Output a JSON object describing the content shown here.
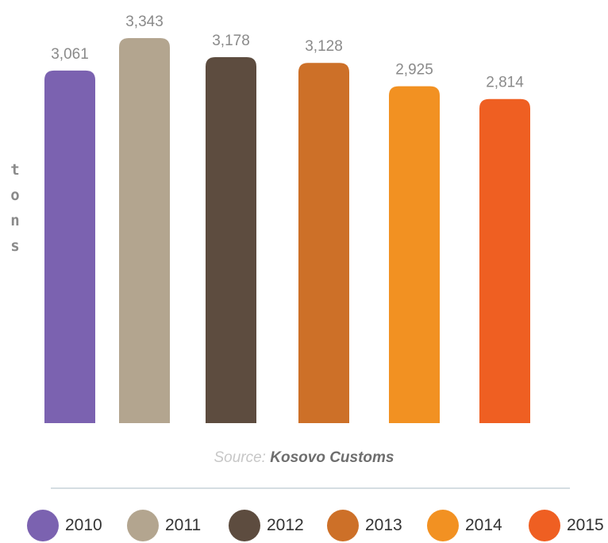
{
  "chart_data": {
    "type": "bar",
    "categories": [
      "2010",
      "2011",
      "2012",
      "2013",
      "2014",
      "2015"
    ],
    "values": [
      3061,
      3343,
      3178,
      3128,
      2925,
      2814
    ],
    "value_labels": [
      "3,061",
      "3,343",
      "3,178",
      "3,128",
      "2,925",
      "2,814"
    ],
    "colors": [
      "#7b62b0",
      "#b3a58f",
      "#5d4c3f",
      "#cd7028",
      "#f29122",
      "#ef5f22"
    ],
    "ylabel": "tons",
    "ylim": [
      0,
      3400
    ],
    "grid": false,
    "legend_placement": "bottom",
    "source_prefix": "Source:",
    "source_name": "Kosovo Customs"
  }
}
